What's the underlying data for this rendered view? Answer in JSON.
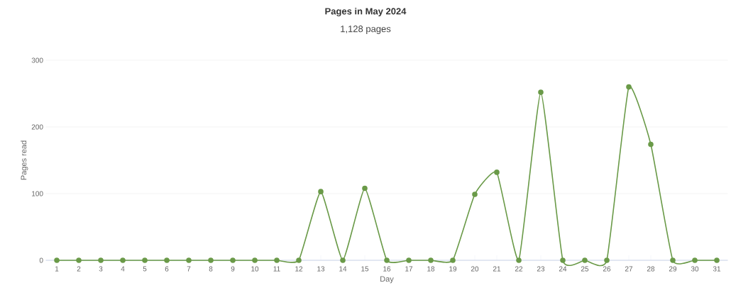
{
  "chart_data": {
    "type": "line",
    "title": "Pages in May 2024",
    "subtitle": "1,128 pages",
    "xlabel": "Day",
    "ylabel": "Pages read",
    "categories": [
      "1",
      "2",
      "3",
      "4",
      "5",
      "6",
      "7",
      "8",
      "9",
      "10",
      "11",
      "12",
      "13",
      "14",
      "15",
      "16",
      "17",
      "18",
      "19",
      "20",
      "21",
      "22",
      "23",
      "24",
      "25",
      "26",
      "27",
      "28",
      "29",
      "30",
      "31"
    ],
    "series": [
      {
        "color": "#6a9a48",
        "values": [
          0,
          0,
          0,
          0,
          0,
          0,
          0,
          0,
          0,
          0,
          0,
          0,
          103,
          0,
          108,
          0,
          0,
          0,
          0,
          99,
          132,
          0,
          252,
          0,
          0,
          0,
          260,
          174,
          0,
          0,
          0
        ]
      }
    ],
    "ylim": [
      0,
      300
    ],
    "yticks": [
      0,
      100,
      200,
      300
    ],
    "grid": "y",
    "marker": "circle",
    "line_style": "solid"
  }
}
